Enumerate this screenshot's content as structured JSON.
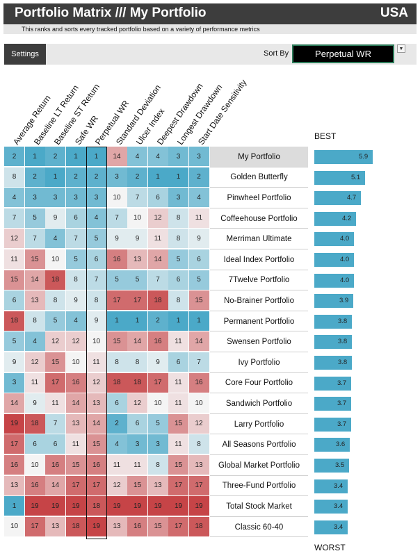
{
  "header": {
    "title": "Portfolio Matrix /// My Portfolio",
    "country": "USA",
    "subtitle": "This ranks and sorts every tracked portfolio based on a variety of performance metrics"
  },
  "toolbar": {
    "settings_label": "Settings",
    "sort_label": "Sort By",
    "sort_value": "Perpetual WR",
    "dropdown_glyph": "▼"
  },
  "columns": [
    "Average Return",
    "Baseline LT Return",
    "Baseline ST Return",
    "Safe WR",
    "Perpetual WR",
    "Standard Deviation",
    "Ulcer Index",
    "Deepest Drawdown",
    "Longest Drawdown",
    "Start Date Sensitivity"
  ],
  "labels": {
    "best": "BEST",
    "worst": "WORST"
  },
  "colors": {
    "best": "#4ba9c8",
    "middle": "#f4f4f4",
    "worst": "#c64447",
    "score_bar": "#4ba9c8",
    "header_bg": "#3d3d3d"
  },
  "rank_scale": {
    "best": 1,
    "worst": 19
  },
  "score_max": 5.9,
  "rows": [
    {
      "name": "My Portfolio",
      "ranks": [
        2,
        1,
        2,
        1,
        1,
        14,
        4,
        4,
        3,
        3
      ],
      "score": "5.9",
      "selected": true
    },
    {
      "name": "Golden Butterfly",
      "ranks": [
        8,
        2,
        1,
        2,
        2,
        3,
        2,
        1,
        1,
        2
      ],
      "score": "5.1"
    },
    {
      "name": "Pinwheel Portfolio",
      "ranks": [
        4,
        3,
        3,
        3,
        3,
        10,
        7,
        6,
        3,
        4
      ],
      "score": "4.7"
    },
    {
      "name": "Coffeehouse Portfolio",
      "ranks": [
        7,
        5,
        9,
        6,
        4,
        7,
        10,
        12,
        8,
        11
      ],
      "score": "4.2"
    },
    {
      "name": "Merriman Ultimate",
      "ranks": [
        12,
        7,
        4,
        7,
        5,
        9,
        9,
        11,
        8,
        9
      ],
      "score": "4.0"
    },
    {
      "name": "Ideal Index Portfolio",
      "ranks": [
        11,
        15,
        10,
        5,
        6,
        16,
        13,
        14,
        5,
        6
      ],
      "score": "4.0"
    },
    {
      "name": "7Twelve Portfolio",
      "ranks": [
        15,
        14,
        18,
        8,
        7,
        5,
        5,
        7,
        6,
        5
      ],
      "score": "4.0"
    },
    {
      "name": "No-Brainer Portfolio",
      "ranks": [
        6,
        13,
        8,
        9,
        8,
        17,
        17,
        18,
        8,
        15
      ],
      "score": "3.9"
    },
    {
      "name": "Permanent Portfolio",
      "ranks": [
        18,
        8,
        5,
        4,
        9,
        1,
        1,
        2,
        1,
        1
      ],
      "score": "3.8"
    },
    {
      "name": "Swensen Portfolio",
      "ranks": [
        5,
        4,
        12,
        12,
        10,
        15,
        14,
        16,
        11,
        14
      ],
      "score": "3.8"
    },
    {
      "name": "Ivy Portfolio",
      "ranks": [
        9,
        12,
        15,
        10,
        11,
        8,
        8,
        9,
        6,
        7
      ],
      "score": "3.8"
    },
    {
      "name": "Core Four Portfolio",
      "ranks": [
        3,
        11,
        17,
        16,
        12,
        18,
        18,
        17,
        11,
        16
      ],
      "score": "3.7"
    },
    {
      "name": "Sandwich Portfolio",
      "ranks": [
        14,
        9,
        11,
        14,
        13,
        6,
        12,
        10,
        11,
        10
      ],
      "score": "3.7"
    },
    {
      "name": "Larry Portfolio",
      "ranks": [
        19,
        18,
        7,
        13,
        14,
        2,
        6,
        5,
        15,
        12
      ],
      "score": "3.7"
    },
    {
      "name": "All Seasons Portfolio",
      "ranks": [
        17,
        6,
        6,
        11,
        15,
        4,
        3,
        3,
        11,
        8
      ],
      "score": "3.6"
    },
    {
      "name": "Global Market Portfolio",
      "ranks": [
        16,
        10,
        16,
        15,
        16,
        11,
        11,
        8,
        15,
        13
      ],
      "score": "3.5"
    },
    {
      "name": "Three-Fund Portfolio",
      "ranks": [
        13,
        16,
        14,
        17,
        17,
        12,
        15,
        13,
        17,
        17
      ],
      "score": "3.4"
    },
    {
      "name": "Total Stock Market",
      "ranks": [
        1,
        19,
        19,
        19,
        18,
        19,
        19,
        19,
        19,
        19
      ],
      "score": "3.4"
    },
    {
      "name": "Classic 60-40",
      "ranks": [
        10,
        17,
        13,
        18,
        19,
        13,
        16,
        15,
        17,
        18
      ],
      "score": "3.4"
    }
  ]
}
